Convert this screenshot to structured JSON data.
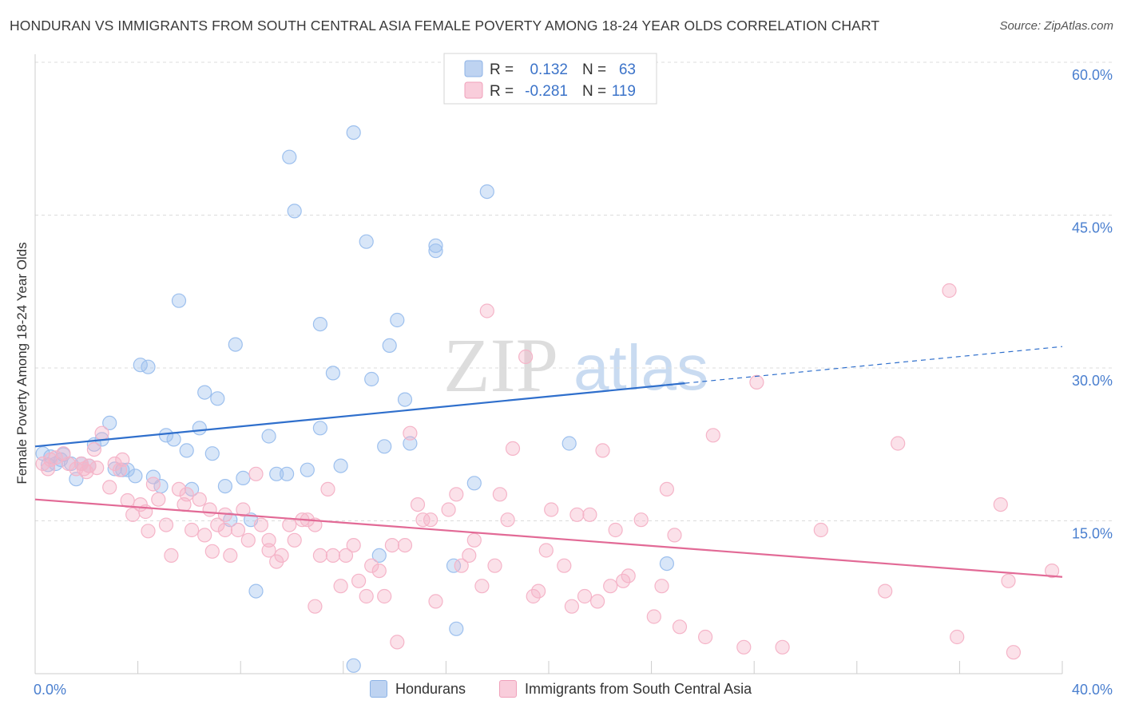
{
  "title": "HONDURAN VS IMMIGRANTS FROM SOUTH CENTRAL ASIA FEMALE POVERTY AMONG 18-24 YEAR OLDS CORRELATION CHART",
  "source": "Source: ZipAtlas.com",
  "watermark": {
    "zip": "ZIP",
    "atlas": "atlas"
  },
  "legend_box": {
    "rows": [
      {
        "r_label": "R =",
        "r_value": "0.132",
        "n_label": "N =",
        "n_value": "63"
      },
      {
        "r_label": "R =",
        "r_value": "-0.281",
        "n_label": "N =",
        "n_value": "119"
      }
    ]
  },
  "bottom_legend": [
    "Hondurans",
    "Immigrants from South Central Asia"
  ],
  "chart_data": {
    "type": "scatter",
    "title": "HONDURAN VS IMMIGRANTS FROM SOUTH CENTRAL ASIA FEMALE POVERTY AMONG 18-24 YEAR OLDS CORRELATION CHART",
    "xlabel": "",
    "ylabel": "Female Poverty Among 18-24 Year Olds",
    "xlim": [
      0,
      40
    ],
    "ylim": [
      0,
      60
    ],
    "x_tick_labels": [
      "0.0%",
      "40.0%"
    ],
    "y_tick_values": [
      15,
      30,
      45,
      60
    ],
    "y_tick_labels": [
      "15.0%",
      "30.0%",
      "45.0%",
      "60.0%"
    ],
    "grid": true,
    "legend_position": "top-center",
    "series": [
      {
        "name": "Hondurans",
        "color": "#9dc0ee",
        "line_color": "#2f6fcc",
        "R": 0.132,
        "N": 63,
        "trend": {
          "x_start": 0,
          "y_start": 22.3,
          "x_solid_end": 25.3,
          "y_solid_end": 28.5,
          "x_end": 40,
          "y_end": 32.1
        },
        "points": [
          [
            0.3,
            21.6
          ],
          [
            0.5,
            20.5
          ],
          [
            0.6,
            21.3
          ],
          [
            0.8,
            20.6
          ],
          [
            1.0,
            21.0
          ],
          [
            1.1,
            21.5
          ],
          [
            1.4,
            20.6
          ],
          [
            1.6,
            19.1
          ],
          [
            1.8,
            20.6
          ],
          [
            2.1,
            20.4
          ],
          [
            2.3,
            22.5
          ],
          [
            2.6,
            23.0
          ],
          [
            2.9,
            24.6
          ],
          [
            3.1,
            20.1
          ],
          [
            3.4,
            20.0
          ],
          [
            3.6,
            20.0
          ],
          [
            3.9,
            19.4
          ],
          [
            4.1,
            30.3
          ],
          [
            4.4,
            30.1
          ],
          [
            4.6,
            19.3
          ],
          [
            4.9,
            18.4
          ],
          [
            5.1,
            23.4
          ],
          [
            5.4,
            23.0
          ],
          [
            5.6,
            36.6
          ],
          [
            5.9,
            21.9
          ],
          [
            6.1,
            18.1
          ],
          [
            6.4,
            24.1
          ],
          [
            6.6,
            27.6
          ],
          [
            6.9,
            21.6
          ],
          [
            7.1,
            27.0
          ],
          [
            7.4,
            18.4
          ],
          [
            7.6,
            15.1
          ],
          [
            7.8,
            32.3
          ],
          [
            8.1,
            19.2
          ],
          [
            8.4,
            15.1
          ],
          [
            8.6,
            8.1
          ],
          [
            9.1,
            23.3
          ],
          [
            9.4,
            19.6
          ],
          [
            9.8,
            19.6
          ],
          [
            9.9,
            50.7
          ],
          [
            10.1,
            45.4
          ],
          [
            10.6,
            20.0
          ],
          [
            11.1,
            24.1
          ],
          [
            11.1,
            34.3
          ],
          [
            11.6,
            29.5
          ],
          [
            11.9,
            20.4
          ],
          [
            12.4,
            53.1
          ],
          [
            12.4,
            0.8
          ],
          [
            12.9,
            42.4
          ],
          [
            13.1,
            28.9
          ],
          [
            13.4,
            11.6
          ],
          [
            13.6,
            22.3
          ],
          [
            13.8,
            32.2
          ],
          [
            14.1,
            34.7
          ],
          [
            14.4,
            26.9
          ],
          [
            14.6,
            22.6
          ],
          [
            15.6,
            42.0
          ],
          [
            15.6,
            41.5
          ],
          [
            16.3,
            10.6
          ],
          [
            16.4,
            4.4
          ],
          [
            17.1,
            18.7
          ],
          [
            17.6,
            47.3
          ],
          [
            20.8,
            22.6
          ],
          [
            24.6,
            10.8
          ]
        ]
      },
      {
        "name": "Immigrants from South Central Asia",
        "color": "#f5b4c8",
        "line_color": "#e26a96",
        "R": -0.281,
        "N": 119,
        "trend": {
          "x_start": 0,
          "y_start": 17.1,
          "x_end": 40,
          "y_end": 9.5
        },
        "points": [
          [
            0.3,
            20.6
          ],
          [
            0.5,
            20.1
          ],
          [
            0.6,
            21.0
          ],
          [
            0.8,
            21.2
          ],
          [
            1.1,
            21.6
          ],
          [
            1.3,
            20.6
          ],
          [
            1.6,
            20.1
          ],
          [
            1.8,
            20.6
          ],
          [
            1.9,
            20.1
          ],
          [
            2.0,
            19.8
          ],
          [
            2.1,
            20.4
          ],
          [
            2.3,
            22.0
          ],
          [
            2.4,
            20.2
          ],
          [
            2.6,
            23.6
          ],
          [
            2.9,
            18.3
          ],
          [
            3.1,
            20.6
          ],
          [
            3.3,
            20.0
          ],
          [
            3.4,
            21.0
          ],
          [
            3.6,
            17.0
          ],
          [
            3.8,
            15.6
          ],
          [
            4.1,
            16.6
          ],
          [
            4.3,
            15.9
          ],
          [
            4.4,
            14.0
          ],
          [
            4.6,
            18.6
          ],
          [
            4.8,
            17.1
          ],
          [
            5.1,
            14.6
          ],
          [
            5.3,
            11.6
          ],
          [
            5.6,
            18.1
          ],
          [
            5.8,
            16.6
          ],
          [
            5.9,
            17.6
          ],
          [
            6.1,
            14.1
          ],
          [
            6.4,
            17.1
          ],
          [
            6.6,
            13.6
          ],
          [
            6.8,
            16.1
          ],
          [
            6.9,
            12.0
          ],
          [
            7.1,
            14.6
          ],
          [
            7.4,
            15.6
          ],
          [
            7.4,
            14.1
          ],
          [
            7.6,
            11.6
          ],
          [
            7.9,
            14.1
          ],
          [
            8.1,
            16.1
          ],
          [
            8.3,
            13.1
          ],
          [
            8.6,
            19.6
          ],
          [
            8.8,
            14.6
          ],
          [
            9.1,
            13.1
          ],
          [
            9.1,
            12.1
          ],
          [
            9.4,
            11.0
          ],
          [
            9.6,
            11.6
          ],
          [
            9.9,
            14.6
          ],
          [
            10.1,
            13.1
          ],
          [
            10.4,
            15.1
          ],
          [
            10.6,
            15.1
          ],
          [
            10.9,
            14.6
          ],
          [
            10.9,
            6.6
          ],
          [
            11.1,
            11.6
          ],
          [
            11.4,
            18.1
          ],
          [
            11.6,
            11.6
          ],
          [
            11.9,
            8.6
          ],
          [
            12.1,
            11.6
          ],
          [
            12.4,
            12.6
          ],
          [
            12.6,
            9.1
          ],
          [
            12.9,
            7.6
          ],
          [
            13.1,
            10.6
          ],
          [
            13.4,
            10.1
          ],
          [
            13.6,
            7.6
          ],
          [
            13.9,
            12.6
          ],
          [
            14.1,
            3.1
          ],
          [
            14.4,
            12.6
          ],
          [
            14.6,
            23.6
          ],
          [
            14.9,
            16.6
          ],
          [
            15.1,
            15.1
          ],
          [
            15.4,
            15.1
          ],
          [
            15.6,
            7.1
          ],
          [
            16.1,
            16.1
          ],
          [
            16.4,
            17.6
          ],
          [
            16.6,
            10.6
          ],
          [
            16.9,
            11.6
          ],
          [
            17.1,
            13.1
          ],
          [
            17.4,
            8.6
          ],
          [
            17.6,
            35.6
          ],
          [
            17.9,
            10.6
          ],
          [
            18.1,
            17.6
          ],
          [
            18.4,
            15.1
          ],
          [
            18.6,
            22.1
          ],
          [
            19.1,
            31.1
          ],
          [
            19.4,
            7.6
          ],
          [
            19.6,
            8.1
          ],
          [
            19.9,
            12.1
          ],
          [
            20.1,
            16.1
          ],
          [
            20.6,
            10.6
          ],
          [
            20.9,
            6.6
          ],
          [
            21.1,
            15.6
          ],
          [
            21.4,
            7.6
          ],
          [
            21.6,
            15.6
          ],
          [
            21.9,
            7.1
          ],
          [
            22.1,
            21.9
          ],
          [
            22.4,
            8.6
          ],
          [
            22.6,
            14.1
          ],
          [
            22.9,
            9.1
          ],
          [
            23.1,
            9.6
          ],
          [
            23.6,
            15.1
          ],
          [
            24.1,
            5.6
          ],
          [
            24.4,
            8.6
          ],
          [
            24.6,
            18.1
          ],
          [
            24.9,
            13.6
          ],
          [
            25.1,
            4.6
          ],
          [
            26.1,
            3.6
          ],
          [
            26.4,
            23.4
          ],
          [
            27.6,
            2.6
          ],
          [
            28.1,
            28.6
          ],
          [
            29.1,
            2.6
          ],
          [
            30.6,
            14.1
          ],
          [
            33.1,
            8.1
          ],
          [
            33.6,
            22.6
          ],
          [
            35.6,
            37.6
          ],
          [
            35.9,
            3.6
          ],
          [
            37.6,
            16.6
          ],
          [
            37.9,
            9.1
          ],
          [
            38.1,
            2.1
          ],
          [
            39.6,
            10.1
          ]
        ]
      }
    ]
  }
}
